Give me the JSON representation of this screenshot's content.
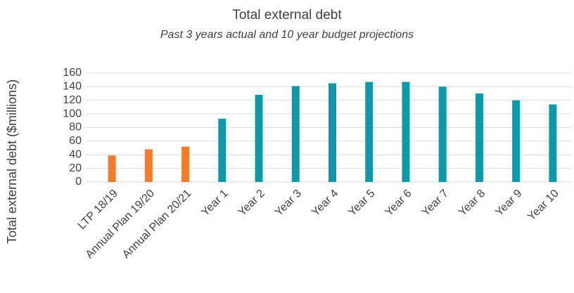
{
  "chart_data": {
    "type": "bar",
    "title": "Total external debt",
    "subtitle": "Past 3  years actual and 10 year budget projections",
    "y_label": "Total external debt ($millions)",
    "categories": [
      "LTP 18/19",
      "Annual Plan 19/20",
      "Annual Plan 20/21",
      "Year 1",
      "Year 2",
      "Year 3",
      "Year 4",
      "Year 5",
      "Year 6",
      "Year 7",
      "Year 8",
      "Year 9",
      "Year 10"
    ],
    "values": [
      39,
      48,
      52,
      93,
      128,
      141,
      145,
      147,
      147,
      140,
      130,
      120,
      114
    ],
    "colors": [
      "#ed7d31",
      "#ed7d31",
      "#ed7d31",
      "#0e98a8",
      "#0e98a8",
      "#0e98a8",
      "#0e98a8",
      "#0e98a8",
      "#0e98a8",
      "#0e98a8",
      "#0e98a8",
      "#0e98a8",
      "#0e98a8"
    ],
    "ylim": [
      0,
      160
    ],
    "yticks": [
      0,
      20,
      40,
      60,
      80,
      100,
      120,
      140,
      160
    ],
    "grid": true
  }
}
